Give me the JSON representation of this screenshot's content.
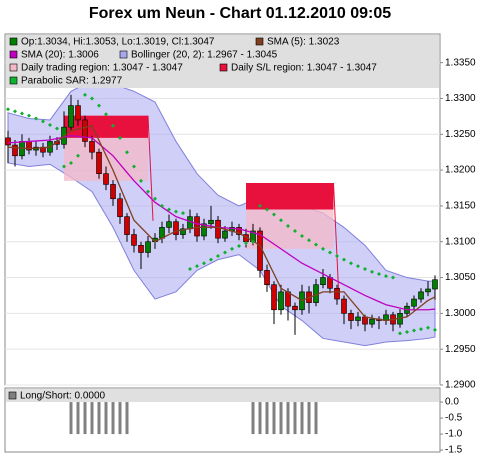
{
  "chart_data": {
    "type": "candlestick",
    "title": "Forex um Neun - Chart 01.12.2010 09:05",
    "legend_text": "Op:1.3034, Hi:1.3053, Lo:1.3019, Cl:1.3047",
    "up_color": "#008000",
    "down_color": "#d00000",
    "open": [
      1.3245,
      1.3235,
      1.322,
      1.324,
      1.3228,
      1.3232,
      1.3225,
      1.324,
      1.3236,
      1.326,
      1.329,
      1.327,
      1.324,
      1.3225,
      1.3195,
      1.318,
      1.316,
      1.3135,
      1.311,
      1.3095,
      1.3085,
      1.31,
      1.3105,
      1.312,
      1.3128,
      1.311,
      1.3118,
      1.3135,
      1.3108,
      1.3125,
      1.313,
      1.3105,
      1.3115,
      1.312,
      1.311,
      1.31,
      1.3115,
      1.306,
      1.304,
      1.3005,
      1.303,
      1.301,
      1.3005,
      1.303,
      1.3015,
      1.304,
      1.305,
      1.3035,
      1.302,
      1.3,
      1.299,
      1.2995,
      1.2985,
      1.2992,
      1.299,
      1.2998,
      1.2985,
      1.3,
      1.301,
      1.302,
      1.303,
      1.3034
    ],
    "high": [
      1.3255,
      1.3242,
      1.325,
      1.3245,
      1.324,
      1.3238,
      1.3248,
      1.3246,
      1.3282,
      1.3305,
      1.3298,
      1.3276,
      1.3248,
      1.323,
      1.3205,
      1.3186,
      1.3168,
      1.314,
      1.3118,
      1.31,
      1.3108,
      1.3112,
      1.3128,
      1.3138,
      1.3132,
      1.3125,
      1.3145,
      1.314,
      1.3132,
      1.315,
      1.3136,
      1.3122,
      1.3128,
      1.3125,
      1.3118,
      1.3125,
      1.312,
      1.3068,
      1.3045,
      1.304,
      1.3035,
      1.3015,
      1.304,
      1.3038,
      1.3048,
      1.3062,
      1.3055,
      1.304,
      1.3025,
      1.3005,
      1.3002,
      1.2998,
      1.2998,
      1.2996,
      1.3005,
      1.3002,
      1.3006,
      1.3015,
      1.3025,
      1.3035,
      1.3045,
      1.3053
    ],
    "low": [
      1.321,
      1.3205,
      1.3215,
      1.3222,
      1.322,
      1.3218,
      1.322,
      1.3228,
      1.323,
      1.3255,
      1.3262,
      1.3232,
      1.3215,
      1.3188,
      1.3172,
      1.315,
      1.3125,
      1.31,
      1.3085,
      1.3062,
      1.3078,
      1.309,
      1.3098,
      1.3112,
      1.3102,
      1.3104,
      1.3112,
      1.31,
      1.3102,
      1.3118,
      1.3098,
      1.31,
      1.3108,
      1.3102,
      1.3092,
      1.3095,
      1.305,
      1.303,
      1.2985,
      1.2998,
      1.299,
      1.297,
      1.2998,
      1.3,
      1.301,
      1.3035,
      1.3028,
      1.3012,
      1.2985,
      1.2978,
      1.2982,
      1.2975,
      1.298,
      1.2978,
      1.2984,
      1.2975,
      1.298,
      1.2995,
      1.3004,
      1.3015,
      1.3024,
      1.3019
    ],
    "close": [
      1.3235,
      1.322,
      1.324,
      1.3228,
      1.3232,
      1.3225,
      1.324,
      1.3236,
      1.326,
      1.329,
      1.327,
      1.324,
      1.3225,
      1.3195,
      1.318,
      1.316,
      1.3135,
      1.311,
      1.3095,
      1.3085,
      1.31,
      1.3105,
      1.312,
      1.3128,
      1.311,
      1.3118,
      1.3135,
      1.3108,
      1.3125,
      1.313,
      1.3105,
      1.3115,
      1.312,
      1.311,
      1.31,
      1.3115,
      1.306,
      1.304,
      1.3005,
      1.303,
      1.301,
      1.3005,
      1.303,
      1.3015,
      1.304,
      1.305,
      1.3035,
      1.302,
      1.3,
      1.299,
      1.2995,
      1.2985,
      1.2992,
      1.299,
      1.2998,
      1.2985,
      1.3,
      1.301,
      1.302,
      1.303,
      1.3034,
      1.3047
    ],
    "sma5": {
      "label": "SMA (5): 1.3023",
      "color": "#804020",
      "x": [
        0,
        3,
        6,
        9,
        12,
        15,
        18,
        21,
        24,
        27,
        30,
        33,
        36,
        39,
        42,
        45,
        48,
        51,
        54,
        57,
        60,
        61
      ],
      "values": [
        1.3232,
        1.323,
        1.3232,
        1.3255,
        1.3262,
        1.32,
        1.313,
        1.31,
        1.3115,
        1.312,
        1.312,
        1.3112,
        1.3095,
        1.3035,
        1.3018,
        1.303,
        1.303,
        1.2995,
        1.299,
        1.2995,
        1.3018,
        1.3023
      ]
    },
    "sma20": {
      "label": "SMA (20): 1.3006",
      "color": "#c000c0",
      "x": [
        0,
        3,
        6,
        9,
        12,
        15,
        18,
        21,
        24,
        27,
        30,
        33,
        36,
        39,
        42,
        45,
        48,
        51,
        54,
        57,
        60,
        61
      ],
      "values": [
        1.3238,
        1.324,
        1.3242,
        1.3248,
        1.3245,
        1.322,
        1.3185,
        1.3155,
        1.3135,
        1.3125,
        1.312,
        1.3118,
        1.311,
        1.309,
        1.307,
        1.3055,
        1.304,
        1.3025,
        1.3012,
        1.3005,
        1.3005,
        1.3006
      ]
    },
    "bollinger": {
      "label": "Bollinger (20, 2): 1.2967 - 1.3045",
      "color": "#a8a8f0",
      "x": [
        0,
        3,
        6,
        9,
        12,
        15,
        18,
        21,
        24,
        27,
        30,
        33,
        36,
        39,
        42,
        45,
        48,
        51,
        54,
        57,
        60,
        61
      ],
      "upper": [
        1.328,
        1.3272,
        1.327,
        1.331,
        1.3325,
        1.332,
        1.331,
        1.3295,
        1.324,
        1.3195,
        1.3165,
        1.315,
        1.3162,
        1.3165,
        1.315,
        1.314,
        1.312,
        1.3095,
        1.306,
        1.305,
        1.3045,
        1.3045
      ],
      "lower": [
        1.321,
        1.3205,
        1.3208,
        1.319,
        1.317,
        1.312,
        1.306,
        1.302,
        1.303,
        1.306,
        1.3075,
        1.3082,
        1.306,
        1.301,
        1.299,
        1.2965,
        1.296,
        1.2955,
        1.296,
        1.2962,
        1.2965,
        1.2967
      ]
    },
    "sar": {
      "label": "Parabolic SAR: 1.2977",
      "color": "#10b030",
      "values": [
        1.3285,
        1.3282,
        1.3279,
        1.3276,
        1.3272,
        1.3268,
        1.3263,
        1.3258,
        1.3205,
        1.321,
        1.322,
        1.3305,
        1.33,
        1.329,
        1.3278,
        1.3262,
        1.3245,
        1.3225,
        1.3205,
        1.3185,
        1.317,
        1.316,
        1.315,
        1.3145,
        1.3142,
        1.314,
        1.3062,
        1.3066,
        1.307,
        1.3075,
        1.308,
        1.3085,
        1.309,
        1.3094,
        1.3098,
        1.31,
        1.315,
        1.3145,
        1.3138,
        1.313,
        1.3122,
        1.3115,
        1.3108,
        1.3102,
        1.3096,
        1.309,
        1.3085,
        1.308,
        1.3075,
        1.307,
        1.3066,
        1.3062,
        1.3058,
        1.3055,
        1.3052,
        1.305,
        1.2972,
        1.2974,
        1.2976,
        1.2978,
        1.298,
        1.2977
      ]
    },
    "regions": {
      "trading_label": "Daily trading region: 1.3047 - 1.3047",
      "trading_color": "#f4b8c8",
      "sl_label": "Daily S/L region: 1.3047 - 1.3047",
      "sl_color": "#e8103c",
      "items": [
        {
          "start": 8,
          "end": 20,
          "sl": [
            1.3245,
            1.3276
          ],
          "trading": [
            1.3185,
            1.3245
          ]
        },
        {
          "start": 34,
          "end": 46.5,
          "sl": [
            1.3145,
            1.3182
          ],
          "trading": [
            1.309,
            1.3145
          ]
        }
      ]
    },
    "ylim": [
      1.29,
      1.339
    ],
    "yticks": [
      {
        "value": 1.29,
        "label": "1.2900"
      },
      {
        "value": 1.295,
        "label": "1.2950"
      },
      {
        "value": 1.3,
        "label": "1.3000"
      },
      {
        "value": 1.305,
        "label": "1.3050"
      },
      {
        "value": 1.31,
        "label": "1.3100"
      },
      {
        "value": 1.315,
        "label": "1.3150"
      },
      {
        "value": 1.32,
        "label": "1.3200"
      },
      {
        "value": 1.325,
        "label": "1.3250"
      },
      {
        "value": 1.33,
        "label": "1.3300"
      },
      {
        "value": 1.335,
        "label": "1.3350"
      }
    ],
    "grid": true,
    "lower_panel": {
      "label": "Long/Short: 0.0000",
      "color": "#808080",
      "values": [
        0,
        0,
        0,
        0,
        0,
        0,
        0,
        0,
        0,
        -1,
        -1,
        -1,
        -1,
        -1,
        -1,
        -1,
        -1,
        -1,
        0,
        0,
        0,
        0,
        0,
        0,
        0,
        0,
        0,
        0,
        0,
        0,
        0,
        0,
        0,
        0,
        0,
        -1,
        -1,
        -1,
        -1,
        -1,
        -1,
        -1,
        -1,
        -1,
        -1,
        0,
        0,
        0,
        0,
        0,
        0,
        0,
        0,
        0,
        0,
        0,
        0,
        0,
        0,
        0,
        0,
        0
      ],
      "ylim": [
        -1.56,
        0.44
      ],
      "yticks": [
        {
          "value": 0,
          "label": "0.0"
        },
        {
          "value": -0.5,
          "label": "-0.5"
        },
        {
          "value": -1,
          "label": "-1.0"
        },
        {
          "value": -1.5,
          "label": "-1.5"
        }
      ]
    }
  }
}
